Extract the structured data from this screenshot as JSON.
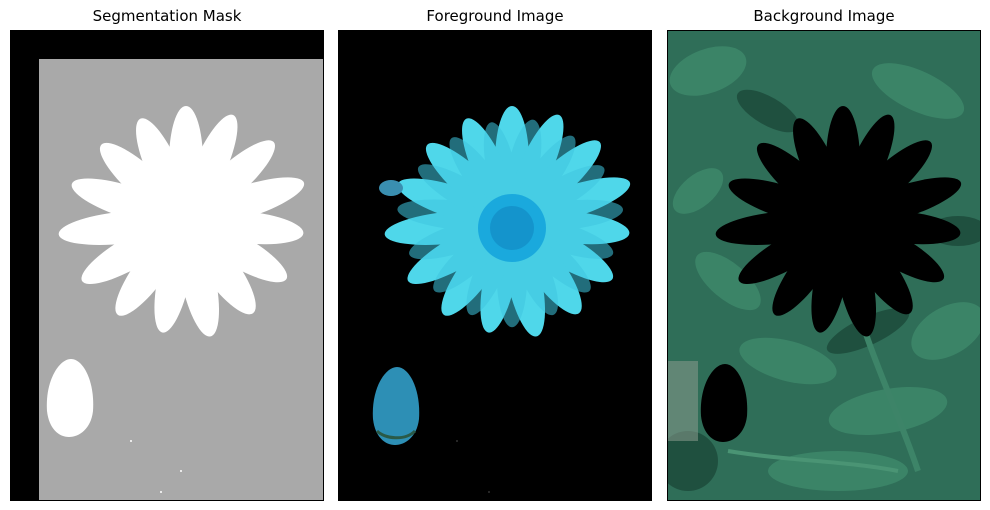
{
  "panels": [
    {
      "title": "Segmentation Mask"
    },
    {
      "title": "Foreground Image"
    },
    {
      "title": "Background Image"
    }
  ],
  "colors": {
    "mask_background": "#000000",
    "mask_probable": "#a9a9a9",
    "mask_foreground": "#ffffff",
    "petal": "#4fd7ea",
    "flower_center": "#1aa9dd",
    "foliage": "#2f6e58",
    "foliage_dark": "#163d30"
  }
}
